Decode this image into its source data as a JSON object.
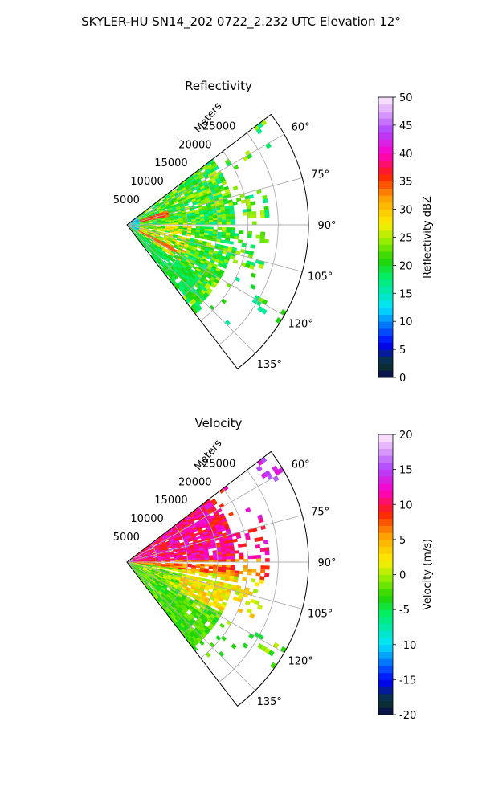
{
  "figure": {
    "suptitle": "SKYLER-HU  SN14_202  0722_2.232 UTC Elevation 12°"
  },
  "chart_data": [
    {
      "type": "heatmap",
      "projection": "polar-sector",
      "title": "Reflectivity",
      "radial_axis_label": "Meters",
      "radial_ticks": [
        "5000",
        "10000",
        "15000",
        "20000",
        "25000"
      ],
      "angle_ticks": [
        "60°",
        "75°",
        "90°",
        "105°",
        "120°",
        "135°"
      ],
      "angle_range_deg": [
        52.5,
        142.5
      ],
      "range_max_m": 30000,
      "grid": true,
      "colorbar": {
        "label": "Reflectivity dBZ",
        "lim": [
          0,
          50
        ],
        "ticks": [
          "0",
          "5",
          "10",
          "15",
          "20",
          "25",
          "30",
          "35",
          "40",
          "45",
          "50"
        ]
      },
      "field_summary": "Echo fills most of the sector out to ~18-20 km with values mostly 15-30 dBZ (green-yellow), patches near 30-35 dBZ (orange/red) close to the radar, a data gap stripe near 90°, and scattered 20 dBZ echoes near 25-29 km."
    },
    {
      "type": "heatmap",
      "projection": "polar-sector",
      "title": "Velocity",
      "radial_axis_label": "Meters",
      "radial_ticks": [
        "5000",
        "10000",
        "15000",
        "20000",
        "25000"
      ],
      "angle_ticks": [
        "60°",
        "75°",
        "90°",
        "105°",
        "120°",
        "135°"
      ],
      "angle_range_deg": [
        52.5,
        142.5
      ],
      "range_max_m": 30000,
      "grid": true,
      "colorbar": {
        "label": "Velocity (m/s)",
        "lim": [
          -20,
          20
        ],
        "ticks": [
          "-20",
          "-15",
          "-10",
          "-5",
          "0",
          "5",
          "10",
          "15",
          "20"
        ]
      },
      "field_summary": "Azimuths above ~90° show outbound 8-15 m/s (magenta/red); azimuths below ~95° show near 0 to +8 m/s (yellow/orange) with -3 to -5 m/s (light green) near the far edge of the sector."
    }
  ],
  "colors": {
    "grid": "#b0b0b0",
    "spine": "#000000",
    "gap": "#ffffff"
  }
}
